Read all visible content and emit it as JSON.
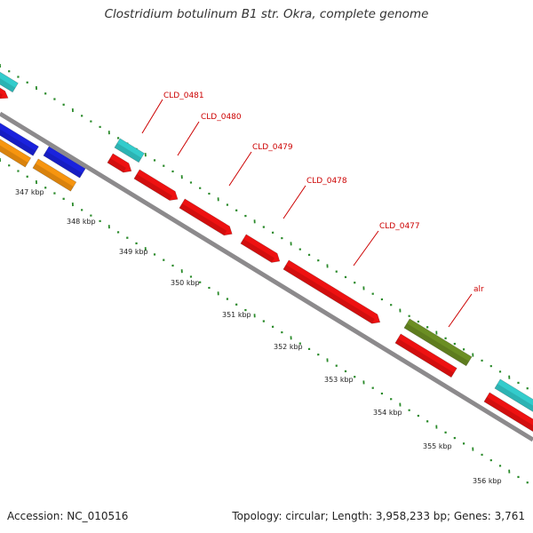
{
  "title": "Clostridium botulinum B1 str. Okra, complete genome",
  "footer": {
    "accession": "Accession: NC_010516",
    "summary": "Topology: circular; Length: 3,958,233 bp; Genes: 3,761"
  },
  "colors": {
    "backbone": "#8c8a8c",
    "ticks": "#2a8a2a",
    "label": "#cc0000",
    "red_gene": "#ee1111",
    "cyan_gene": "#33cccc",
    "blue_gene": "#1a22dd",
    "orange_gene": "#f7950f",
    "olive_gene": "#6b8e23"
  },
  "kbp_labels": [
    "347 kbp",
    "348 kbp",
    "349 kbp",
    "350 kbp",
    "351 kbp",
    "352 kbp",
    "353 kbp",
    "354 kbp",
    "355 kbp",
    "356 kbp"
  ],
  "gene_labels": [
    "CLD_0481",
    "CLD_0480",
    "CLD_0479",
    "CLD_0478",
    "CLD_0477",
    "alr"
  ]
}
